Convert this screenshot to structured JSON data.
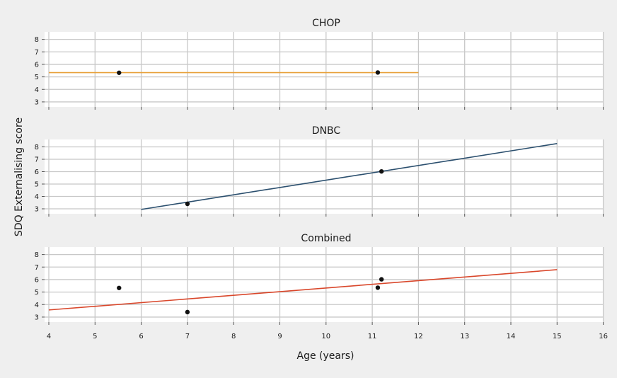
{
  "figure": {
    "ylabel": "SDQ Externalising score",
    "xlabel": "Age (years)"
  },
  "chart_data": [
    {
      "type": "scatter",
      "title": "CHOP",
      "xlim": [
        4,
        16
      ],
      "ylim": [
        2.6,
        8.6
      ],
      "xticks": [
        4,
        5,
        6,
        7,
        8,
        9,
        10,
        11,
        12,
        13,
        14,
        15,
        16
      ],
      "yticks": [
        3,
        4,
        5,
        6,
        7,
        8
      ],
      "grid": true,
      "points": [
        {
          "x": 5.52,
          "y": 5.33
        },
        {
          "x": 11.12,
          "y": 5.35
        }
      ],
      "fit_line": {
        "color": "#e8a13a",
        "x": [
          4,
          12
        ],
        "y": [
          5.34,
          5.34
        ]
      }
    },
    {
      "type": "scatter",
      "title": "DNBC",
      "xlim": [
        4,
        16
      ],
      "ylim": [
        2.6,
        8.6
      ],
      "xticks": [
        4,
        5,
        6,
        7,
        8,
        9,
        10,
        11,
        12,
        13,
        14,
        15,
        16
      ],
      "yticks": [
        3,
        4,
        5,
        6,
        7,
        8
      ],
      "grid": true,
      "points": [
        {
          "x": 7.0,
          "y": 3.4
        },
        {
          "x": 11.2,
          "y": 6.02
        }
      ],
      "fit_line": {
        "color": "#2b4f6e",
        "x": [
          6,
          15
        ],
        "y": [
          2.95,
          8.27
        ]
      }
    },
    {
      "type": "scatter",
      "title": "Combined",
      "xlim": [
        4,
        16
      ],
      "ylim": [
        2.6,
        8.6
      ],
      "xticks": [
        4,
        5,
        6,
        7,
        8,
        9,
        10,
        11,
        12,
        13,
        14,
        15,
        16
      ],
      "yticks": [
        3,
        4,
        5,
        6,
        7,
        8
      ],
      "grid": true,
      "points": [
        {
          "x": 5.52,
          "y": 5.33
        },
        {
          "x": 7.0,
          "y": 3.4
        },
        {
          "x": 11.12,
          "y": 5.35
        },
        {
          "x": 11.2,
          "y": 6.02
        }
      ],
      "fit_line": {
        "color": "#d9472b",
        "x": [
          4,
          15
        ],
        "y": [
          3.57,
          6.79
        ]
      }
    }
  ]
}
